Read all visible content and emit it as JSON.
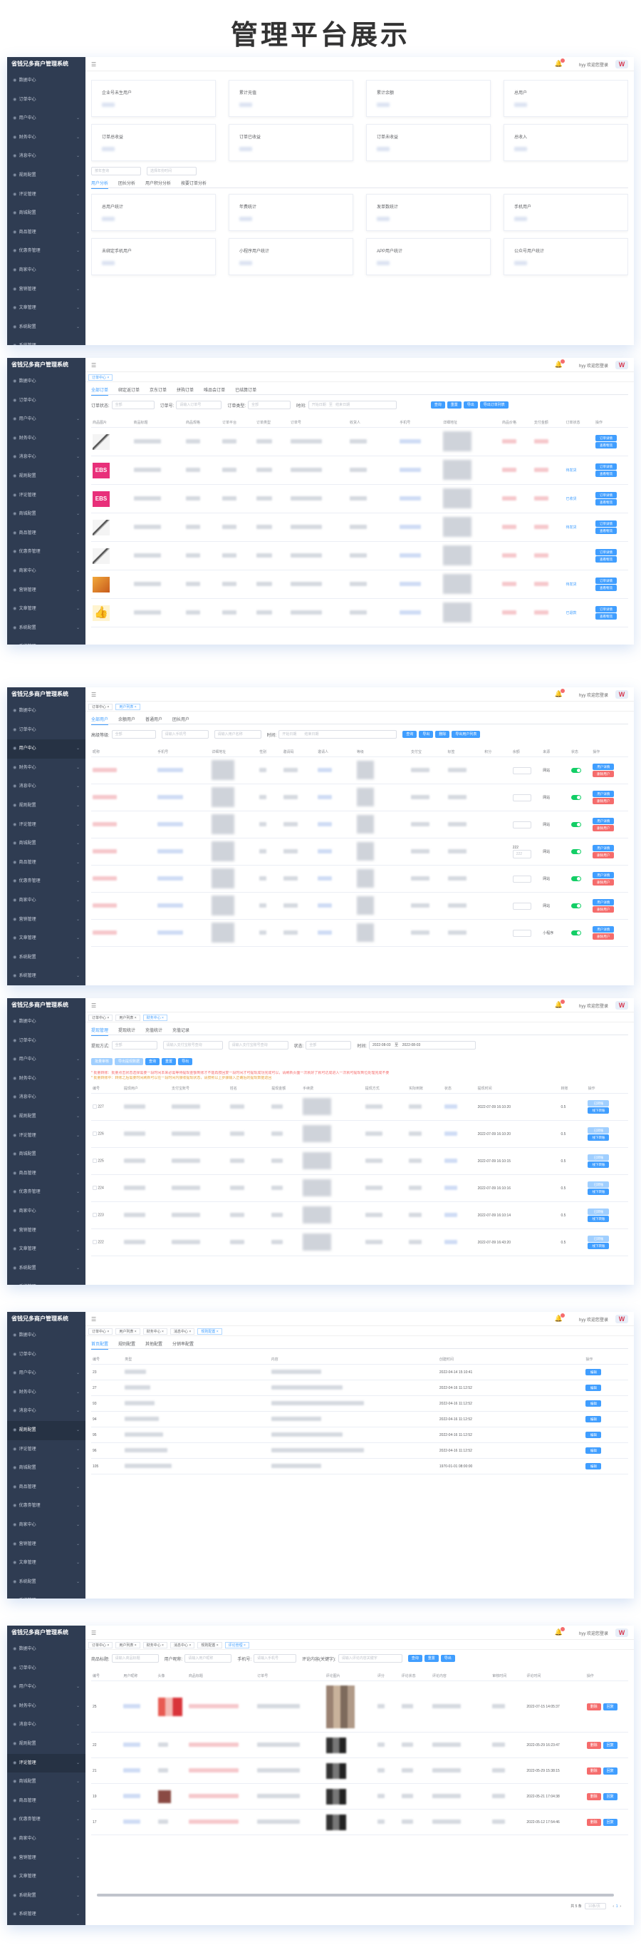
{
  "page_title": "管理平台展示",
  "app": {
    "name": "省钱兄多商户管理系统",
    "user_greeting": "hyy 欢迎您登录",
    "logo_mark": "W"
  },
  "sidebar": {
    "items": [
      {
        "label": "数据中心",
        "icon": "chart-icon"
      },
      {
        "label": "订单中心",
        "icon": "order-icon"
      },
      {
        "label": "用户中心",
        "icon": "user-icon"
      },
      {
        "label": "财务中心",
        "icon": "finance-icon"
      },
      {
        "label": "消息中心",
        "icon": "message-icon"
      },
      {
        "label": "规则配置",
        "icon": "rule-icon"
      },
      {
        "label": "评论管理",
        "icon": "comment-icon"
      },
      {
        "label": "商城配置",
        "icon": "shop-icon"
      },
      {
        "label": "商品管理",
        "icon": "goods-icon"
      },
      {
        "label": "优惠劵管理",
        "icon": "coupon-icon"
      },
      {
        "label": "商家中心",
        "icon": "merchant-icon"
      },
      {
        "label": "营销管理",
        "icon": "marketing-icon"
      },
      {
        "label": "文章管理",
        "icon": "article-icon"
      },
      {
        "label": "系统配置",
        "icon": "system-icon"
      },
      {
        "label": "系统管理",
        "icon": "settings-icon"
      }
    ]
  },
  "tags": {
    "order": "订单中心",
    "user_list": "用户列表",
    "finance": "财务中心",
    "message": "消息中心",
    "rule": "规则配置",
    "comment": "评论管理"
  },
  "s1": {
    "cards_top": [
      "企业号未生用户",
      "累计充值",
      "累计余额",
      "总用户",
      "订单总收益",
      "订单已收益",
      "订单未收益",
      "总收入"
    ],
    "filters": {
      "select": "按年查询",
      "date": "选择年份时间"
    },
    "tabs": [
      "用户分析",
      "团长分析",
      "用户积分分析",
      "按要订单分析"
    ],
    "cards_bottom": [
      "总用户统计",
      "年费统计",
      "发单数统计",
      "手机用户",
      "未绑定手机用户",
      "小程序用户统计",
      "APP用户统计",
      "公众号用户统计"
    ]
  },
  "s2": {
    "tabs": [
      "全部订单",
      "绑定返订单",
      "京东订单",
      "拼购订单",
      "唯品会订单",
      "已结算订单"
    ],
    "filters": {
      "status_label": "订单状态:",
      "status_value": "全部",
      "no_label": "订单号:",
      "no_ph": "请输入订单号",
      "type_label": "订单类型:",
      "type_value": "全部",
      "time_label": "时间:",
      "start": "开始日期",
      "sep": "至",
      "end": "结束日期"
    },
    "buttons": [
      "查询",
      "重置",
      "导出",
      "导出订单列表"
    ],
    "columns": [
      "商品图片",
      "商品标题",
      "商品规格",
      "订单平台",
      "订单类型",
      "订单号",
      "收货人",
      "手机号",
      "详细地址",
      "商品价格",
      "支付金额",
      "订单状态",
      "操作"
    ],
    "rows": [
      {
        "thumb": "bird",
        "status": ""
      },
      {
        "thumb": "pink",
        "status": "待发货"
      },
      {
        "thumb": "pink",
        "status": "已收货"
      },
      {
        "thumb": "bird",
        "status": "待发货"
      },
      {
        "thumb": "bird",
        "status": ""
      },
      {
        "thumb": "food",
        "status": "待发货"
      },
      {
        "thumb": "hand",
        "status": "已退款"
      }
    ],
    "op_detail": "订单详情",
    "op_ship": "查看物流"
  },
  "s3": {
    "tabs": [
      "全部用户",
      "余额用户",
      "普通用户",
      "团长用户"
    ],
    "filters": {
      "level_label": "高级等级:",
      "level_value": "全部",
      "ph1": "请输入手机号",
      "ph2": "请输入用户名称",
      "time_label": "时间:",
      "start": "开始日期",
      "end": "结束日期"
    },
    "buttons": [
      "查询",
      "导出",
      "删除",
      "导出用户列表"
    ],
    "columns": [
      "昵称",
      "手机号",
      "详细地址",
      "性别",
      "邀请码",
      "邀请人",
      "等级",
      "支付宝",
      "标签",
      "积分",
      "余额",
      "来源",
      "状态",
      "操作"
    ],
    "rows": [
      {
        "level": "微信",
        "source": "网站"
      },
      {
        "level": "微信",
        "source": "网站"
      },
      {
        "level": "微信",
        "source": "网站"
      },
      {
        "level": "微信",
        "source": "网站",
        "extra1": "222",
        "extra2": "222"
      },
      {
        "level": "微信",
        "source": "网站"
      },
      {
        "level": "微信",
        "source": "网站"
      },
      {
        "level": "微信",
        "source": "小程序"
      }
    ],
    "op_detail": "用户详情",
    "op_delete": "删除用户"
  },
  "s4": {
    "tabs": [
      "提现管理",
      "提现统计",
      "充值统计",
      "充值记录"
    ],
    "filters": {
      "way_label": "提现方式:",
      "way_value": "全部",
      "ph1": "请输入支付宝账号查询",
      "ph2": "请输入支付宝账号查询",
      "state_label": "状态:",
      "state_value": "全部",
      "time_label": "时间:",
      "start": "2022-08-03",
      "sep": "至",
      "end": "2022-08-03"
    },
    "buttons": [
      "批量审核",
      "导出提现数据",
      "查询",
      "重置",
      "导出"
    ],
    "warn1": "* 批量转账：批量点击状态选择需要一段时间本来必需等待提现金额到账才不能再按回复一段时间才可提现成功完成可以，请刷新页面一次就好了就可达成进入一次就可提现到位处理完成不要",
    "warn2": "* 批量转账中：转账之后需要时间刷新可以在一段时间内接收提现状态，请按照以上步骤输入正确后的提现数据返回",
    "columns": [
      "编号",
      "提现用户",
      "支付宝账号",
      "姓名",
      "提现金额",
      "手续费",
      "提现方式",
      "实际到账",
      "状态",
      "提现时间",
      "转账",
      "操作"
    ],
    "rows": [
      {
        "id": "227",
        "time": "2022-07-09 16:10:20",
        "fee": "0.5"
      },
      {
        "id": "226",
        "time": "2022-07-09 16:10:20",
        "fee": "0.5"
      },
      {
        "id": "225",
        "time": "2022-07-09 16:10:15",
        "fee": "0.5"
      },
      {
        "id": "224",
        "time": "2022-07-09 16:10:16",
        "fee": "0.5"
      },
      {
        "id": "223",
        "time": "2022-07-09 16:10:14",
        "fee": "0.5"
      },
      {
        "id": "222",
        "time": "2022-07-09 16:43:20",
        "fee": "0.5"
      }
    ],
    "op_done": "已转账",
    "op_view": "查看",
    "op_transfer": "线下转账"
  },
  "s5": {
    "tabs": [
      "首页配置",
      "规则配置",
      "其他配置",
      "分销率配置"
    ],
    "columns": [
      "编号",
      "类型",
      "内容",
      "创建时间",
      "操作"
    ],
    "rows": [
      {
        "id": "23",
        "time": "2022-04-14 15:10:41"
      },
      {
        "id": "27",
        "time": "2022-04-16 11:12:52"
      },
      {
        "id": "93",
        "time": "2022-04-16 11:12:52"
      },
      {
        "id": "94",
        "time": "2022-04-16 11:12:52"
      },
      {
        "id": "95",
        "time": "2022-04-16 11:12:52"
      },
      {
        "id": "96",
        "time": "2022-04-16 11:12:52"
      },
      {
        "id": "105",
        "time": "1970-01-01 08:00:00"
      }
    ],
    "op_edit": "编辑"
  },
  "s6": {
    "filters": {
      "goods_label": "商品标题:",
      "goods_ph": "请输入商品标题",
      "user_label": "用户昵称:",
      "user_ph": "请输入用户昵称",
      "phone_label": "手机号:",
      "phone_ph": "请输入手机号",
      "content_label": "评论内容(关键字):",
      "content_ph": "请输入评论内容关键字"
    },
    "buttons": [
      "查询",
      "重置",
      "导出"
    ],
    "columns": [
      "编号",
      "用户昵称",
      "头像",
      "商品标题",
      "订单号",
      "评论图片",
      "评分",
      "评论状态",
      "评论内容",
      "审核时间",
      "评论时间",
      "操作"
    ],
    "rows": [
      {
        "id": "25",
        "time": "2022-07-15 14:05:37"
      },
      {
        "id": "22",
        "time": "2022-05-29 16:23:47"
      },
      {
        "id": "21",
        "time": "2022-05-29 15:38:15"
      },
      {
        "id": "19",
        "time": "2022-05-21 17:04:38"
      },
      {
        "id": "17",
        "time": "2022-05-12 17:54:46"
      }
    ],
    "op_delete": "删除",
    "op_reply": "回复",
    "pagination": {
      "total": "共 5 条",
      "per": "10条/页",
      "page": "1"
    }
  }
}
